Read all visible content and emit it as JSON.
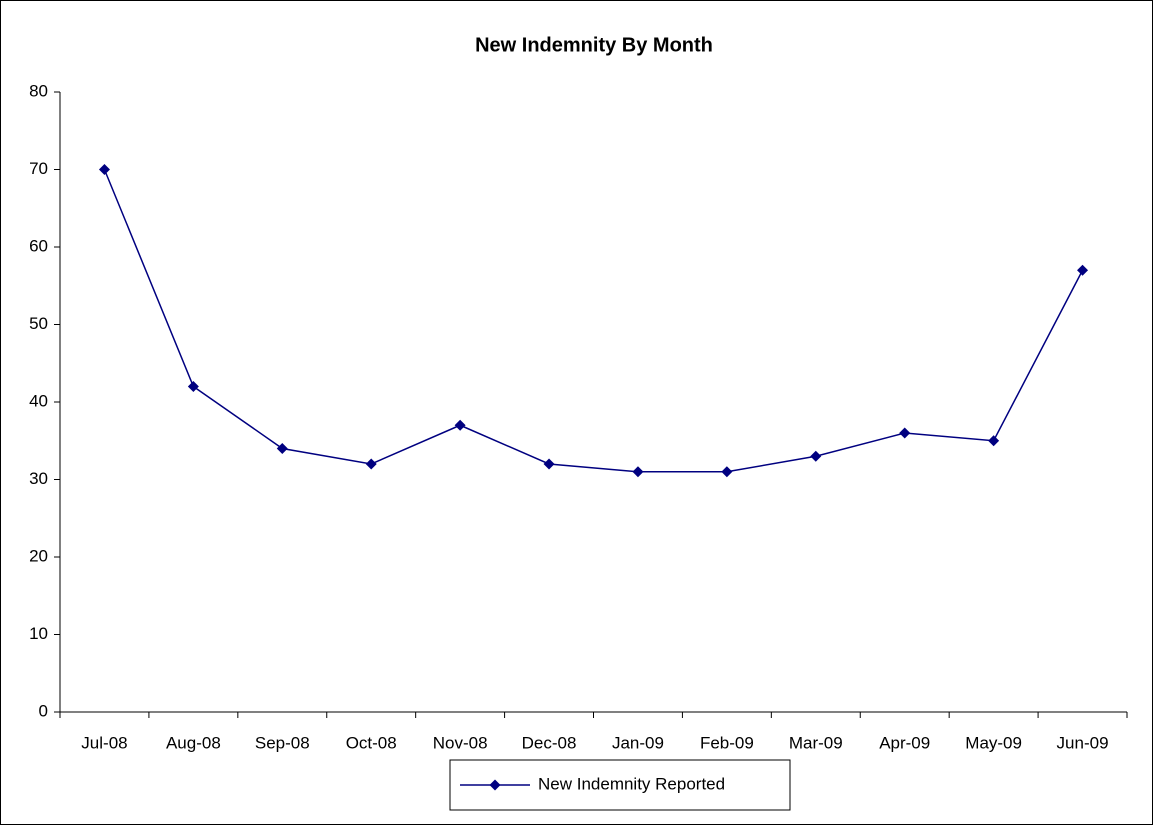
{
  "chart_data": {
    "type": "line",
    "title": "New Indemnity By Month",
    "categories": [
      "Jul-08",
      "Aug-08",
      "Sep-08",
      "Oct-08",
      "Nov-08",
      "Dec-08",
      "Jan-09",
      "Feb-09",
      "Mar-09",
      "Apr-09",
      "May-09",
      "Jun-09"
    ],
    "series": [
      {
        "name": "New Indemnity Reported",
        "color": "#000080",
        "values": [
          70,
          42,
          34,
          32,
          37,
          32,
          31,
          31,
          33,
          36,
          35,
          57
        ]
      }
    ],
    "ylim": [
      0,
      80
    ],
    "yticks": [
      0,
      10,
      20,
      30,
      40,
      50,
      60,
      70,
      80
    ],
    "grid": false,
    "legend": "bottom"
  }
}
